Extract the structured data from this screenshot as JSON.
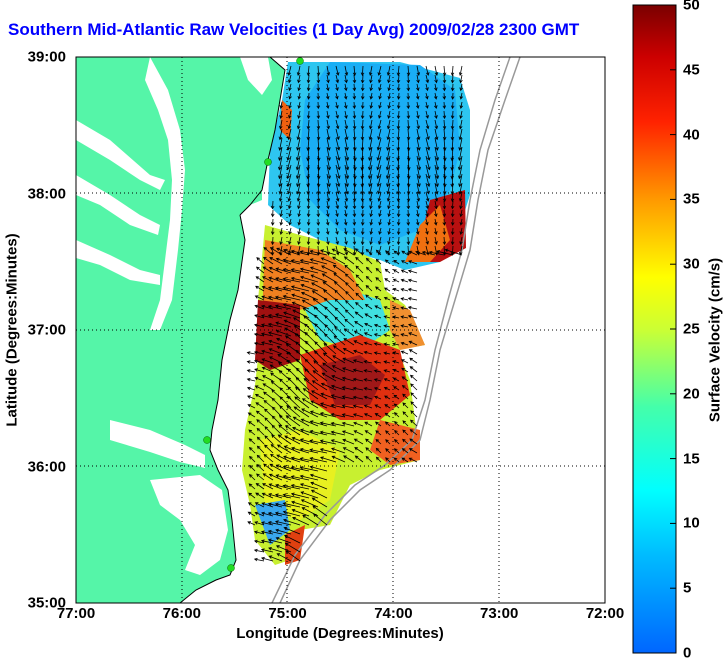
{
  "title": "Southern Mid-Atlantic Raw Velocities (1 Day Avg) 2009/02/28 2300 GMT",
  "map": {
    "xlabel": "Longitude (Degrees:Minutes)",
    "ylabel": "Latitude (Degrees:Minutes)",
    "x_ticks": [
      "77:00",
      "76:00",
      "75:00",
      "74:00",
      "73:00",
      "72:00"
    ],
    "y_ticks": [
      "39:00",
      "38:00",
      "37:00",
      "36:00",
      "35:00"
    ],
    "lon_range": [
      -77,
      -72
    ],
    "lat_range": [
      35,
      39
    ],
    "grid": true,
    "land_color": "#55f5a8",
    "water_color": "#ffffff",
    "stations": [
      "green-dot",
      "green-dot",
      "green-dot",
      "green-dot"
    ]
  },
  "colorbar": {
    "label": "Surface Velocity (cm/s)",
    "ticks": [
      "0",
      "5",
      "10",
      "15",
      "20",
      "25",
      "30",
      "35",
      "40",
      "45",
      "50"
    ],
    "range": [
      0,
      50
    ],
    "colormap": "jet"
  }
}
